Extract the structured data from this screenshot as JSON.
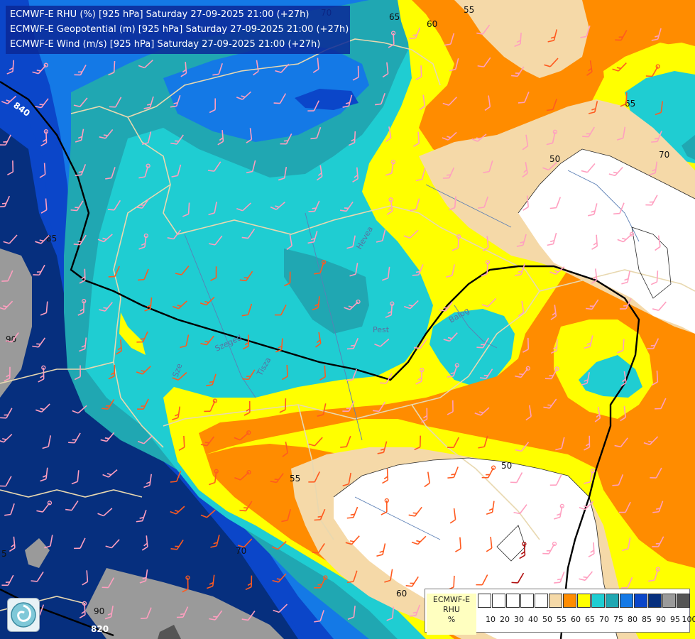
{
  "titles": [
    "ECMWF-E RHU (%) [925 hPa] Saturday 27-09-2025 21:00 (+27h)",
    "ECMWF-E Geopotential (m) [925 hPa] Saturday 27-09-2025 21:00 (+27h)",
    "ECMWF-E Wind (m/s) [925 hPa] Saturday 27-09-2025 21:00 (+27h)"
  ],
  "legend": {
    "label_lines": [
      "ECMWF-E",
      "RHU",
      "%"
    ],
    "ticks": [
      "10",
      "20",
      "30",
      "40",
      "50",
      "55",
      "60",
      "65",
      "70",
      "75",
      "80",
      "85",
      "90",
      "95",
      "100"
    ],
    "colors": [
      "#ffffff",
      "#ffffff",
      "#ffffff",
      "#ffffff",
      "#ffffff",
      "#f5d9a8",
      "#ff8c00",
      "#ffff00",
      "#1fcdd2",
      "#20a7b2",
      "#1479e6",
      "#0b46c9",
      "#062f7e",
      "#9a9a9a",
      "#555555"
    ]
  },
  "contour_labels": [
    "70",
    "65",
    "60",
    "55",
    "65",
    "70",
    "50",
    "85",
    "90",
    "50",
    "55",
    "70",
    "60",
    "90",
    "5"
  ],
  "geopotential_labels": [
    "840",
    "820"
  ],
  "place_labels": [
    "Hevea",
    "Pest",
    "Balog",
    "Szeged",
    "Tisza",
    "Sze"
  ],
  "colors": {
    "rhu_100": "#555555",
    "rhu_95": "#9a9a9a",
    "rhu_90": "#062f7e",
    "rhu_85": "#0b46c9",
    "rhu_80": "#1479e6",
    "rhu_75": "#20a7b2",
    "rhu_70": "#1fcdd2",
    "rhu_65": "#ffff00",
    "rhu_60": "#ff8c00",
    "rhu_55": "#f5d9a8",
    "rhu_50": "#ffffff",
    "border": "#e8d8b0",
    "geopotential_line": "#000000"
  }
}
